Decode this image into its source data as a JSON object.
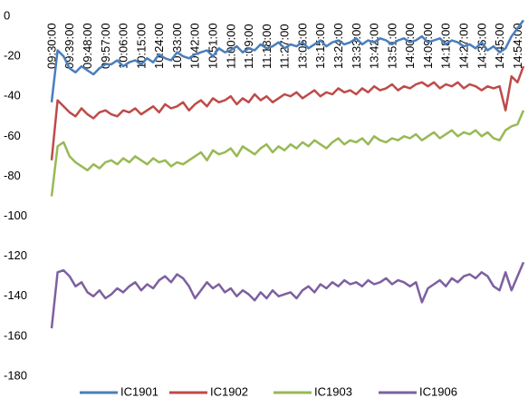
{
  "chart_data": {
    "type": "line",
    "categories": [
      "09:30:00",
      null,
      null,
      "09:39:00",
      null,
      null,
      "09:48:00",
      null,
      null,
      "09:57:00",
      null,
      null,
      "10:06:00",
      null,
      null,
      "10:15:00",
      null,
      null,
      "10:24:00",
      null,
      null,
      "10:33:00",
      null,
      null,
      "10:42:00",
      null,
      null,
      "10:51:00",
      null,
      null,
      "11:00:00",
      null,
      null,
      "11:09:00",
      null,
      null,
      "11:18:00",
      null,
      null,
      "11:27:00",
      null,
      null,
      "13:06:00",
      null,
      null,
      "13:15:00",
      null,
      null,
      "13:24:00",
      null,
      null,
      "13:33:00",
      null,
      null,
      "13:42:00",
      null,
      null,
      "13:51:00",
      null,
      null,
      "14:00:00",
      null,
      null,
      "14:09:00",
      null,
      null,
      "14:18:00",
      null,
      null,
      "14:27:00",
      null,
      null,
      "14:36:00",
      null,
      null,
      "14:45:00",
      null,
      null,
      "14:54:00",
      null
    ],
    "series": [
      {
        "name": "IC1901",
        "color": "#4a7ebb",
        "values": [
          -43,
          -17,
          -20,
          -26,
          -28,
          -25,
          -27,
          -29,
          -26,
          -24,
          -24,
          -22,
          -25,
          -23,
          -22,
          -24,
          -21,
          -23,
          -19,
          -21,
          -22,
          -18,
          -20,
          -21,
          -19,
          -18,
          -17,
          -20,
          -16,
          -18,
          -17,
          -15,
          -18,
          -16,
          -17,
          -14,
          -16,
          -15,
          -13,
          -16,
          -14,
          -15,
          -13,
          -16,
          -14,
          -12,
          -15,
          -13,
          -12,
          -14,
          -13,
          -11,
          -14,
          -12,
          -13,
          -11,
          -12,
          -14,
          -12,
          -11,
          -13,
          -12,
          -10,
          -13,
          -12,
          -11,
          -14,
          -12,
          -13,
          -15,
          -14,
          -16,
          -13,
          -17,
          -15,
          -18,
          -16,
          -10,
          -6,
          -2
        ]
      },
      {
        "name": "IC1902",
        "color": "#be4b48",
        "values": [
          -72,
          -42,
          -45,
          -48,
          -50,
          -46,
          -49,
          -51,
          -48,
          -47,
          -49,
          -50,
          -47,
          -48,
          -46,
          -49,
          -47,
          -45,
          -48,
          -44,
          -46,
          -45,
          -43,
          -47,
          -44,
          -42,
          -45,
          -41,
          -43,
          -42,
          -40,
          -44,
          -41,
          -43,
          -39,
          -42,
          -40,
          -43,
          -41,
          -39,
          -40,
          -38,
          -41,
          -39,
          -37,
          -40,
          -38,
          -39,
          -36,
          -38,
          -37,
          -39,
          -36,
          -38,
          -35,
          -37,
          -36,
          -34,
          -37,
          -35,
          -36,
          -34,
          -33,
          -35,
          -33,
          -36,
          -34,
          -35,
          -33,
          -36,
          -34,
          -35,
          -37,
          -35,
          -36,
          -35,
          -47,
          -30,
          -33,
          -25
        ]
      },
      {
        "name": "IC1903",
        "color": "#98b954",
        "values": [
          -90,
          -65,
          -63,
          -70,
          -73,
          -75,
          -77,
          -74,
          -76,
          -73,
          -72,
          -74,
          -71,
          -73,
          -70,
          -72,
          -74,
          -71,
          -73,
          -72,
          -75,
          -73,
          -74,
          -72,
          -70,
          -68,
          -72,
          -67,
          -69,
          -68,
          -66,
          -70,
          -65,
          -67,
          -69,
          -66,
          -64,
          -68,
          -65,
          -67,
          -64,
          -66,
          -63,
          -65,
          -62,
          -64,
          -66,
          -63,
          -61,
          -64,
          -62,
          -63,
          -61,
          -64,
          -60,
          -62,
          -63,
          -61,
          -62,
          -60,
          -61,
          -59,
          -62,
          -60,
          -58,
          -61,
          -59,
          -57,
          -60,
          -58,
          -59,
          -57,
          -60,
          -58,
          -61,
          -62,
          -57,
          -55,
          -54,
          -47
        ]
      },
      {
        "name": "IC1906",
        "color": "#7d60a0",
        "values": [
          -156,
          -128,
          -127,
          -130,
          -135,
          -133,
          -138,
          -140,
          -137,
          -141,
          -139,
          -136,
          -138,
          -135,
          -133,
          -137,
          -134,
          -136,
          -132,
          -130,
          -133,
          -129,
          -131,
          -135,
          -141,
          -137,
          -133,
          -136,
          -134,
          -138,
          -136,
          -140,
          -137,
          -139,
          -142,
          -138,
          -141,
          -137,
          -140,
          -139,
          -138,
          -141,
          -137,
          -135,
          -138,
          -134,
          -136,
          -133,
          -135,
          -132,
          -134,
          -133,
          -135,
          -132,
          -134,
          -133,
          -131,
          -134,
          -132,
          -133,
          -135,
          -133,
          -143,
          -136,
          -134,
          -132,
          -135,
          -131,
          -133,
          -130,
          -129,
          -131,
          -128,
          -130,
          -135,
          -137,
          -128,
          -137,
          -130,
          -123
        ]
      }
    ],
    "ylim": [
      -180,
      0
    ],
    "yticks": [
      0,
      -20,
      -40,
      -60,
      -80,
      -100,
      -120,
      -140,
      -160,
      -180
    ],
    "grid": false,
    "legend": "bottom"
  }
}
